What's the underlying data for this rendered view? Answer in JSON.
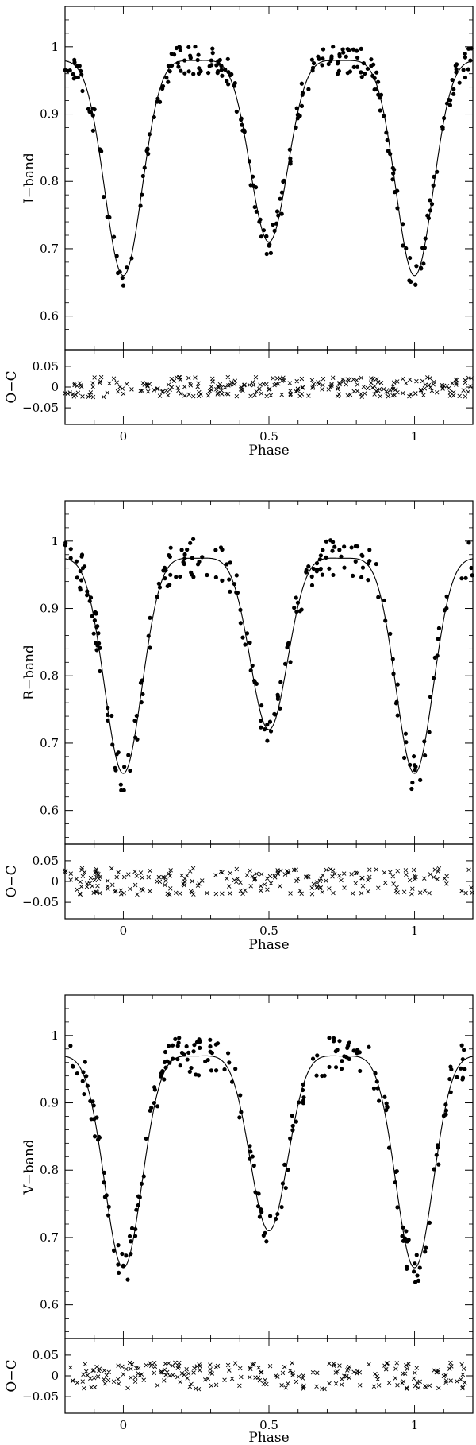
{
  "chart_data": [
    {
      "type": "scatter",
      "ylabel": "I−band",
      "ylim": [
        0.55,
        1.06
      ],
      "xlim": [
        -0.2,
        1.2
      ],
      "yticks": [
        0.6,
        0.7,
        0.8,
        0.9,
        1.0
      ],
      "ytick_labels": [
        "0.6",
        "0.7",
        "0.8",
        "0.9",
        "1"
      ],
      "model": {
        "min1": 0.66,
        "min2": 0.71,
        "max": 1.0
      },
      "observed": {
        "noise": 0.012,
        "seed": 11,
        "count": 260
      },
      "residuals": {
        "ylabel": "O−C",
        "ylim": [
          -0.09,
          0.09
        ],
        "yticks": [
          0.05,
          0.0,
          -0.05
        ],
        "ytick_labels": [
          "0.05",
          "0",
          "−0.05"
        ],
        "spread": 0.015
      },
      "xlabel": "Phase",
      "xticks": [
        0,
        0.5,
        1
      ],
      "xtick_labels": [
        "0",
        "0.5",
        "1"
      ]
    },
    {
      "type": "scatter",
      "ylabel": "R−band",
      "ylim": [
        0.55,
        1.06
      ],
      "xlim": [
        -0.2,
        1.2
      ],
      "yticks": [
        0.6,
        0.7,
        0.8,
        0.9,
        1.0
      ],
      "ytick_labels": [
        "0.6",
        "0.7",
        "0.8",
        "0.9",
        "1"
      ],
      "model": {
        "min1": 0.655,
        "min2": 0.72,
        "max": 0.995
      },
      "observed": {
        "noise": 0.014,
        "seed": 23,
        "count": 220
      },
      "residuals": {
        "ylabel": "O−C",
        "ylim": [
          -0.09,
          0.09
        ],
        "yticks": [
          0.05,
          0.0,
          -0.05
        ],
        "ytick_labels": [
          "0.05",
          "0",
          "−0.05"
        ],
        "spread": 0.02
      },
      "xlabel": "Phase",
      "xticks": [
        0,
        0.5,
        1
      ],
      "xtick_labels": [
        "0",
        "0.5",
        "1"
      ]
    },
    {
      "type": "scatter",
      "ylabel": "V−band",
      "ylim": [
        0.55,
        1.06
      ],
      "xlim": [
        -0.2,
        1.2
      ],
      "yticks": [
        0.6,
        0.7,
        0.8,
        0.9,
        1.0
      ],
      "ytick_labels": [
        "0.6",
        "0.7",
        "0.8",
        "0.9",
        "1"
      ],
      "model": {
        "min1": 0.655,
        "min2": 0.71,
        "max": 0.99
      },
      "observed": {
        "noise": 0.014,
        "seed": 37,
        "count": 220
      },
      "residuals": {
        "ylabel": "O−C",
        "ylim": [
          -0.09,
          0.09
        ],
        "yticks": [
          0.05,
          0.0,
          -0.05
        ],
        "ytick_labels": [
          "0.05",
          "0",
          "−0.05"
        ],
        "spread": 0.02
      },
      "xlabel": "Phase",
      "xticks": [
        0,
        0.5,
        1
      ],
      "xtick_labels": [
        "0",
        "0.5",
        "1"
      ]
    }
  ]
}
